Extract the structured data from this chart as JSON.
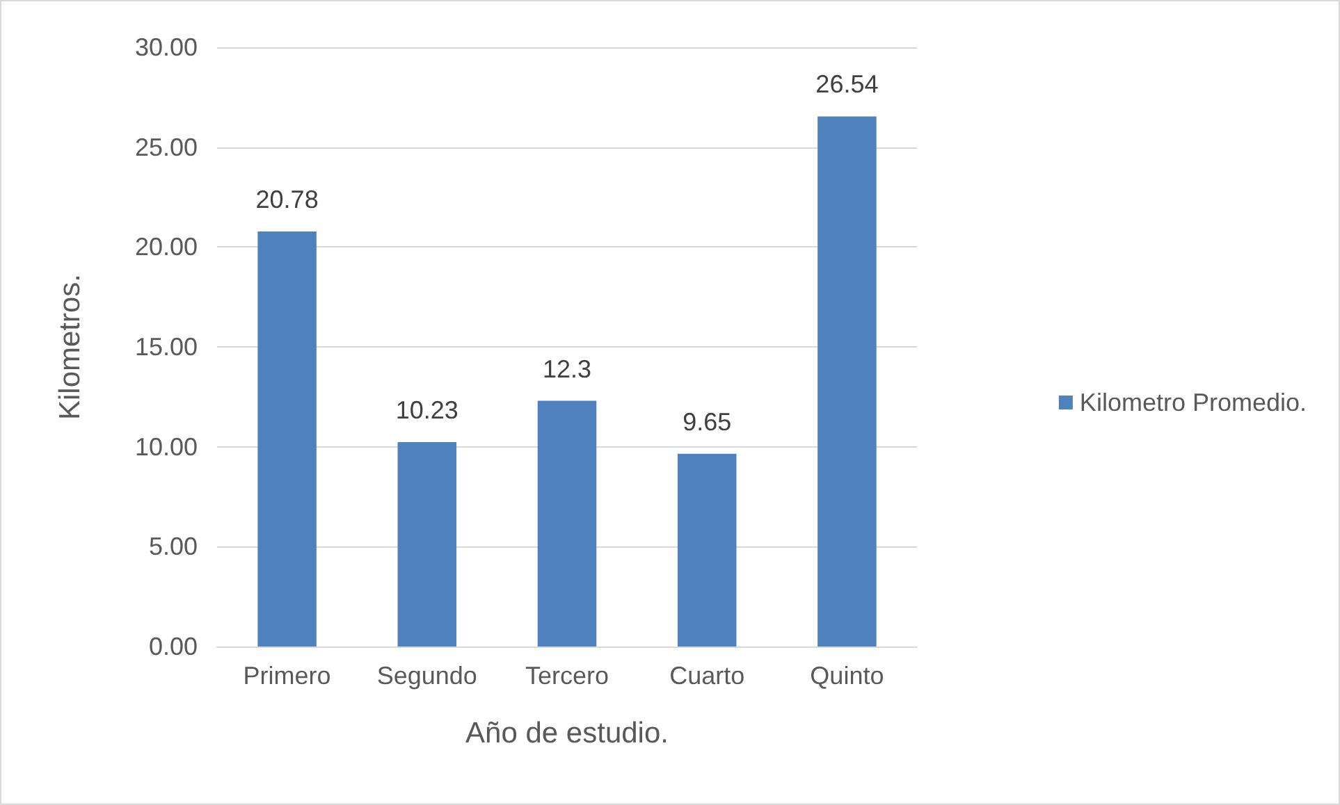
{
  "chart_data": {
    "type": "bar",
    "xlabel": "Año de estudio.",
    "ylabel": "Kilometros.",
    "categories": [
      "Primero",
      "Segundo",
      "Tercero",
      "Cuarto",
      "Quinto"
    ],
    "series": [
      {
        "name": "Kilometro Promedio.",
        "color": "#4f81bd",
        "values": [
          20.78,
          10.23,
          12.3,
          9.65,
          26.54
        ]
      }
    ],
    "ylim": [
      0,
      30
    ],
    "yticks": [
      {
        "value": 0,
        "label": "0.00"
      },
      {
        "value": 5,
        "label": "5.00"
      },
      {
        "value": 10,
        "label": "10.00"
      },
      {
        "value": 15,
        "label": "15.00"
      },
      {
        "value": 20,
        "label": "20.00"
      },
      {
        "value": 25,
        "label": "25.00"
      },
      {
        "value": 30,
        "label": "30.00"
      }
    ],
    "grid": "y",
    "legend": "right",
    "data_labels": true
  }
}
